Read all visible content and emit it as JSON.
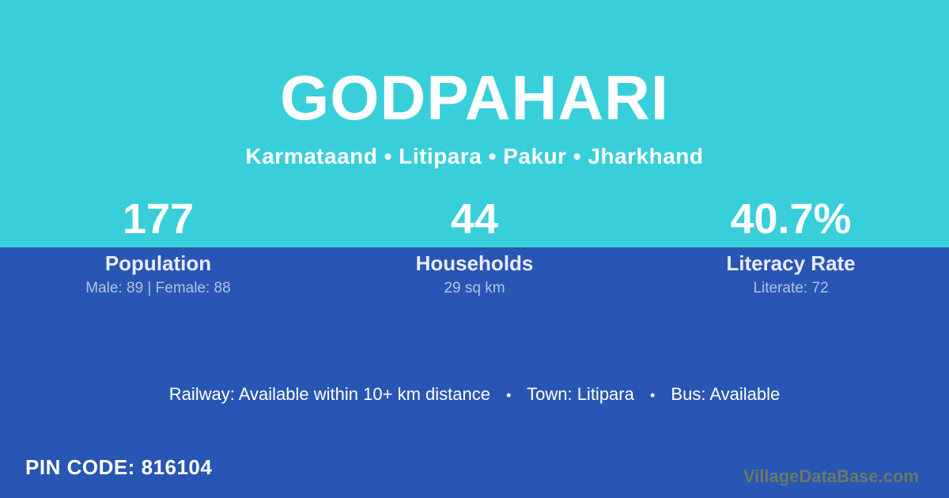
{
  "theme": {
    "top_bg": "#38cfdb",
    "bottom_bg": "#2956b4",
    "label_color": "#e8ebf8",
    "muted_color": "#b3c0e5",
    "watermark_color": "#6b7866"
  },
  "header": {
    "title": "GODPAHARI",
    "subtitle": "Karmataand • Litipara • Pakur • Jharkhand"
  },
  "stats": [
    {
      "value": "177",
      "label": "Population",
      "detail": "Male: 89 | Female: 88"
    },
    {
      "value": "44",
      "label": "Households",
      "detail": "29 sq km"
    },
    {
      "value": "40.7%",
      "label": "Literacy Rate",
      "detail": "Literate: 72"
    }
  ],
  "amenities": {
    "separator": "•",
    "items": [
      "Railway: Available within 10+ km distance",
      "Town: Litipara",
      "Bus: Available"
    ]
  },
  "footer": {
    "pin_code": "PIN CODE: 816104",
    "watermark": "VillageDataBase.com"
  }
}
